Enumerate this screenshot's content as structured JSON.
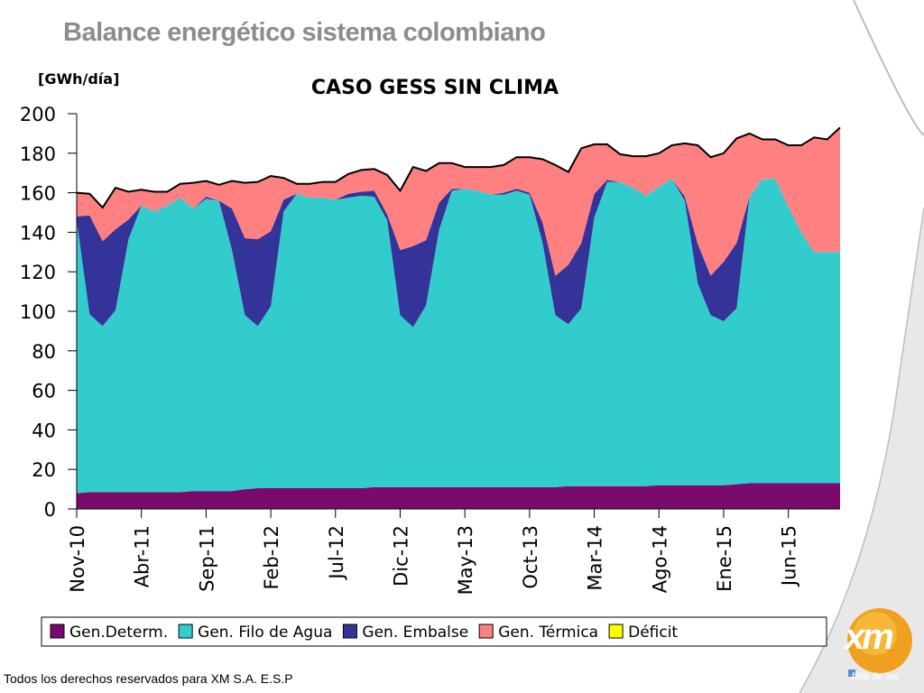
{
  "page": {
    "title": "Balance energético sistema colombiano",
    "footer": "Todos los derechos reservados para XM S.A. E.S.P",
    "logo_text": "xm",
    "logo_tagline": "filial de isa"
  },
  "chart_data": {
    "type": "area",
    "stacked": true,
    "title": "CASO GESS SIN CLIMA",
    "ylabel": "[GWh/día]",
    "ylim": [
      0,
      200
    ],
    "yticks": [
      0,
      20,
      40,
      60,
      80,
      100,
      120,
      140,
      160,
      180,
      200
    ],
    "xtick_labels": [
      "Nov-10",
      "Abr-11",
      "Sep-11",
      "Feb-12",
      "Jul-12",
      "Dic-12",
      "May-13",
      "Oct-13",
      "Mar-14",
      "Ago-14",
      "Ene-15",
      "Jun-15"
    ],
    "xtick_every": 5,
    "grid": false,
    "legend_position": "bottom",
    "x": [
      "Nov-10",
      "Dic-10",
      "Ene-11",
      "Feb-11",
      "Mar-11",
      "Abr-11",
      "May-11",
      "Jun-11",
      "Jul-11",
      "Ago-11",
      "Sep-11",
      "Oct-11",
      "Nov-11",
      "Dic-11",
      "Ene-12",
      "Feb-12",
      "Mar-12",
      "Abr-12",
      "May-12",
      "Jun-12",
      "Jul-12",
      "Ago-12",
      "Sep-12",
      "Oct-12",
      "Nov-12",
      "Dic-12",
      "Ene-13",
      "Feb-13",
      "Mar-13",
      "Abr-13",
      "May-13",
      "Jun-13",
      "Jul-13",
      "Ago-13",
      "Sep-13",
      "Oct-13",
      "Nov-13",
      "Dic-13",
      "Ene-14",
      "Feb-14",
      "Mar-14",
      "Abr-14",
      "May-14",
      "Jun-14",
      "Jul-14",
      "Ago-14",
      "Sep-14",
      "Oct-14",
      "Nov-14",
      "Dic-14",
      "Ene-15",
      "Feb-15",
      "Mar-15",
      "Abr-15",
      "May-15",
      "Jun-15",
      "Jul-15",
      "Ago-15",
      "Sep-15",
      "Oct-15"
    ],
    "series": [
      {
        "name": "Gen.Determ.",
        "color": "#7b0a6e",
        "values": [
          8,
          8.5,
          8.5,
          8.5,
          8.5,
          8.5,
          8.5,
          8.5,
          8.5,
          9,
          9,
          9,
          9,
          10,
          10.5,
          10.5,
          10.5,
          10.5,
          10.5,
          10.5,
          10.5,
          10.5,
          10.5,
          11,
          11,
          11,
          11,
          11,
          11,
          11,
          11,
          11,
          11,
          11,
          11,
          11,
          11,
          11,
          11.5,
          11.5,
          11.5,
          11.5,
          11.5,
          11.5,
          11.5,
          12,
          12,
          12,
          12,
          12,
          12,
          12.5,
          13,
          13,
          13,
          13,
          13,
          13,
          13,
          13
        ]
      },
      {
        "name": "Gen. Filo de Agua",
        "color": "#33cccc",
        "values": [
          138,
          90,
          84,
          92,
          128,
          145,
          142,
          145,
          149,
          143,
          148,
          147,
          122,
          88,
          82,
          92,
          140,
          149,
          147,
          147,
          146,
          147,
          148,
          147,
          135,
          87,
          81,
          92,
          130,
          150,
          151,
          150,
          148,
          148,
          150,
          148,
          124,
          87,
          82,
          90,
          136,
          154,
          154,
          151,
          147,
          151,
          155,
          144,
          102,
          86,
          83,
          89,
          145,
          154,
          154,
          140,
          127,
          117,
          117,
          117
        ]
      },
      {
        "name": "Gen. Embalse",
        "color": "#333399",
        "values": [
          2,
          50,
          43,
          41,
          10,
          0,
          0,
          0,
          0,
          0,
          1,
          0,
          21,
          39,
          44,
          38,
          6,
          0,
          0,
          0,
          0,
          2,
          2,
          3,
          3,
          33,
          41,
          33,
          14,
          1,
          0,
          0,
          0,
          1,
          1,
          1,
          10,
          20,
          30,
          33,
          12,
          1,
          0,
          0,
          0,
          0,
          0,
          2,
          20,
          20,
          30,
          33,
          0,
          0,
          0,
          0,
          0,
          0,
          0,
          0
        ]
      },
      {
        "name": "Gen. Térmica",
        "color": "#ff8080",
        "values": [
          12,
          11,
          17,
          21,
          14,
          8,
          10,
          7,
          7,
          13,
          8,
          8,
          14,
          28,
          29,
          28,
          11,
          5,
          7,
          8,
          9,
          10,
          11,
          11,
          20,
          30,
          40,
          35,
          20,
          13,
          11,
          12,
          14,
          14,
          16,
          18,
          32,
          56,
          47,
          48,
          25,
          18,
          14,
          16,
          20,
          17,
          17,
          27,
          50,
          60,
          55,
          53,
          32,
          20,
          20,
          31,
          44,
          58,
          57,
          63
        ]
      },
      {
        "name": "Déficit",
        "color": "#ffff00",
        "values": [
          0,
          0,
          0,
          0,
          0,
          0,
          0,
          0,
          0,
          0,
          0,
          0,
          0,
          0,
          0,
          0,
          0,
          0,
          0,
          0,
          0,
          0,
          0,
          0,
          0,
          0,
          0,
          0,
          0,
          0,
          0,
          0,
          0,
          0,
          0,
          0,
          0,
          0,
          0,
          0,
          0,
          0,
          0,
          0,
          0,
          0,
          0,
          0,
          0,
          0,
          0,
          0,
          0,
          0,
          0,
          0,
          0,
          0,
          0,
          0
        ]
      }
    ]
  }
}
